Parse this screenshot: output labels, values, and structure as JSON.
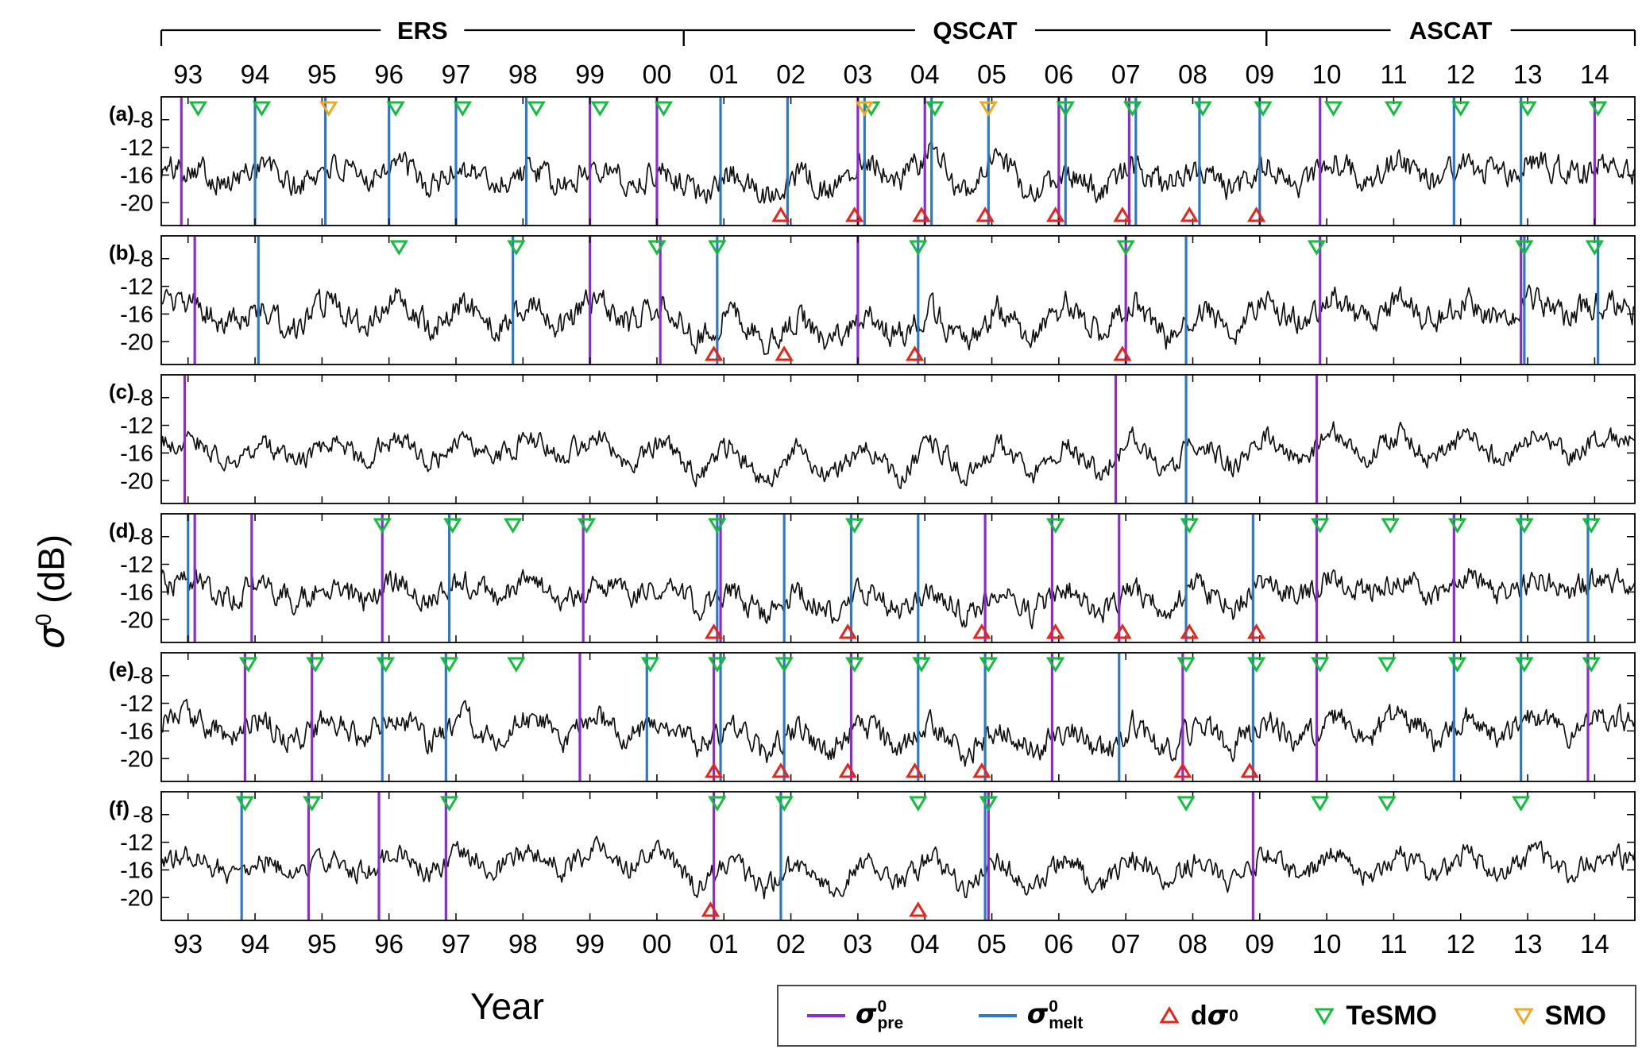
{
  "figure": {
    "x_axis_label": "Year",
    "y_axis_sym": "σ",
    "y_axis_sup": "0",
    "y_axis_unit": " (dB)"
  },
  "colors": {
    "pre": "#8B2BD6",
    "melt": "#2E79C7",
    "dsigma": "#E8231A",
    "tesmo": "#12BE3C",
    "smo": "#F0A81C",
    "trace": "#111111",
    "frame": "#000000"
  },
  "legend": {
    "items": [
      {
        "kind": "line",
        "color_key": "pre",
        "prefix": "",
        "sym": "σ",
        "sup": "0",
        "sub": "pre",
        "label": ""
      },
      {
        "kind": "line",
        "color_key": "melt",
        "prefix": "",
        "sym": "σ",
        "sup": "0",
        "sub": "melt",
        "label": ""
      },
      {
        "kind": "tri-up",
        "color_key": "dsigma",
        "prefix": "d",
        "sym": "σ",
        "sup": "0",
        "sub": "",
        "label": ""
      },
      {
        "kind": "tri-down",
        "color_key": "tesmo",
        "prefix": "",
        "sym": "",
        "sup": "",
        "sub": "",
        "label": "TeSMO"
      },
      {
        "kind": "tri-down",
        "color_key": "smo",
        "prefix": "",
        "sym": "",
        "sup": "",
        "sub": "",
        "label": "SMO"
      }
    ]
  },
  "chart_data": {
    "type": "line",
    "title": "",
    "xlabel": "Year",
    "ylabel": "sigma0 (dB)",
    "x_range": [
      1992.6,
      2014.6
    ],
    "y_range": [
      -23.3,
      -4.7
    ],
    "y_ticks": [
      -8,
      -12,
      -16,
      -20
    ],
    "x_tick_years": [
      1993,
      1994,
      1995,
      1996,
      1997,
      1998,
      1999,
      2000,
      2001,
      2002,
      2003,
      2004,
      2005,
      2006,
      2007,
      2008,
      2009,
      2010,
      2011,
      2012,
      2013,
      2014
    ],
    "x_tick_labels": [
      "93",
      "94",
      "95",
      "96",
      "97",
      "98",
      "99",
      "00",
      "01",
      "02",
      "03",
      "04",
      "05",
      "06",
      "07",
      "08",
      "09",
      "10",
      "11",
      "12",
      "13",
      "14"
    ],
    "eras": [
      {
        "label": "ERS",
        "start": 1992.6,
        "end": 2000.4
      },
      {
        "label": "QSCAT",
        "start": 2000.4,
        "end": 2009.1
      },
      {
        "label": "ASCAT",
        "start": 2009.1,
        "end": 2014.6
      }
    ],
    "series_backbone": {
      "t0": 1992.6,
      "dt": 0.5
    },
    "panels": [
      {
        "label": "(a)",
        "seed": 101,
        "noise": 1.1,
        "values": [
          -15.5,
          -14.5,
          -17.5,
          -14,
          -18,
          -14.5,
          -17,
          -13.5,
          -18,
          -14.5,
          -17.5,
          -15,
          -18,
          -14,
          -17.5,
          -15,
          -18.5,
          -16,
          -19,
          -15.5,
          -18.5,
          -13,
          -17,
          -12.5,
          -18.5,
          -13.5,
          -19,
          -15.5,
          -18.5,
          -14.5,
          -18,
          -15,
          -18.5,
          -14.5,
          -17.5,
          -14,
          -16.5,
          -14,
          -17,
          -14.5,
          -16.5,
          -13.5,
          -16,
          -14.5,
          -15.5
        ],
        "events": {
          "pre": [
            1992.9,
            1999.0,
            2000.0,
            2003.0,
            2004.0,
            2006.0,
            2007.05,
            2009.9,
            2014.0
          ],
          "melt": [
            1994.0,
            1995.05,
            1996.0,
            1997.0,
            1998.05,
            2000.95,
            2001.95,
            2003.1,
            2004.1,
            2004.95,
            2006.1,
            2007.15,
            2008.1,
            2009.0,
            2011.9,
            2012.9
          ],
          "dsigma": [
            2001.85,
            2002.95,
            2003.95,
            2004.9,
            2005.95,
            2006.95,
            2007.95,
            2008.95
          ],
          "tesmo": [
            1993.15,
            1994.1,
            1996.1,
            1997.1,
            1998.2,
            1999.15,
            2000.1,
            2003.2,
            2004.15,
            2006.1,
            2007.1,
            2008.15,
            2009.05,
            2010.1,
            2011.0,
            2012.0,
            2013.0,
            2014.05
          ],
          "smo": [
            1995.1,
            2003.1,
            2004.95
          ]
        }
      },
      {
        "label": "(b)",
        "seed": 102,
        "noise": 1.1,
        "values": [
          -15,
          -14.5,
          -18,
          -15,
          -18.5,
          -14,
          -17.5,
          -13.5,
          -18,
          -14,
          -18.5,
          -14.5,
          -18,
          -13.5,
          -17.5,
          -14.5,
          -19.5,
          -15.5,
          -20.5,
          -16.5,
          -20,
          -16,
          -19.5,
          -15.5,
          -20,
          -15,
          -19.5,
          -14.5,
          -19,
          -14,
          -19.5,
          -15,
          -19,
          -14,
          -17,
          -13.5,
          -17.5,
          -14,
          -17,
          -13.5,
          -17.5,
          -14,
          -16.5,
          -14,
          -15.5
        ],
        "events": {
          "pre": [
            1993.1,
            1999.0,
            2000.05,
            2003.0,
            2007.0,
            2009.9,
            2012.9
          ],
          "melt": [
            1994.05,
            1997.85,
            2000.9,
            2003.9,
            2007.9,
            2012.95,
            2014.05
          ],
          "dsigma": [
            2000.85,
            2001.9,
            2003.85,
            2006.95
          ],
          "tesmo": [
            1996.15,
            1997.9,
            2000.0,
            2000.9,
            2003.9,
            2007.0,
            2009.85,
            2012.95,
            2014.0
          ],
          "smo": []
        }
      },
      {
        "label": "(c)",
        "seed": 103,
        "noise": 0.85,
        "values": [
          -14.5,
          -14,
          -17.5,
          -14.5,
          -18,
          -14,
          -17,
          -13.5,
          -17.5,
          -14,
          -17,
          -13.5,
          -16.5,
          -13.5,
          -17.5,
          -14,
          -19.5,
          -15,
          -20,
          -15.5,
          -19.5,
          -15,
          -19.5,
          -14.5,
          -19,
          -14.5,
          -19.5,
          -14.5,
          -19,
          -14,
          -18.5,
          -14,
          -18.5,
          -13.5,
          -17,
          -13,
          -16.5,
          -13,
          -17.5,
          -13.5,
          -17,
          -13.5,
          -16.5,
          -13.5,
          -14.5
        ],
        "events": {
          "pre": [
            1992.95,
            2006.85,
            2009.85
          ],
          "melt": [
            2007.9
          ],
          "dsigma": [],
          "tesmo": [],
          "smo": []
        }
      },
      {
        "label": "(d)",
        "seed": 104,
        "noise": 1.0,
        "values": [
          -15,
          -14.5,
          -17,
          -14.5,
          -17.5,
          -15,
          -17.5,
          -14,
          -17.5,
          -14.5,
          -17,
          -14,
          -17.5,
          -14,
          -17,
          -14.5,
          -18.5,
          -15.5,
          -19.5,
          -16,
          -19,
          -15.5,
          -19,
          -15,
          -19.5,
          -15.5,
          -19,
          -15,
          -19.5,
          -15.5,
          -19,
          -15,
          -18.5,
          -14.5,
          -17,
          -14,
          -16.5,
          -14,
          -16.5,
          -14,
          -16.5,
          -14,
          -16,
          -14,
          -15
        ],
        "events": {
          "pre": [
            1993.1,
            1993.95,
            1995.9,
            1998.9,
            2000.95,
            2004.9,
            2005.9,
            2006.9,
            2009.85,
            2011.9
          ],
          "melt": [
            1993.0,
            1996.9,
            2000.9,
            2001.9,
            2002.9,
            2003.9,
            2007.9,
            2008.9,
            2012.9,
            2013.9
          ],
          "dsigma": [
            2000.85,
            2002.85,
            2004.85,
            2005.95,
            2006.95,
            2007.95,
            2008.95
          ],
          "tesmo": [
            1995.9,
            1996.95,
            1997.85,
            1998.95,
            2000.9,
            2002.95,
            2005.95,
            2007.95,
            2009.9,
            2010.95,
            2011.95,
            2012.95,
            2013.95
          ],
          "smo": []
        }
      },
      {
        "label": "(e)",
        "seed": 105,
        "noise": 1.05,
        "values": [
          -15,
          -14,
          -17,
          -14,
          -17.5,
          -14,
          -17,
          -13.5,
          -17.5,
          -14,
          -17.5,
          -14,
          -17,
          -13.5,
          -17,
          -14.5,
          -18.5,
          -15,
          -19.5,
          -15.5,
          -19,
          -15,
          -19,
          -15,
          -19.5,
          -15,
          -19,
          -15.5,
          -19.5,
          -15,
          -19,
          -15,
          -18.5,
          -14.5,
          -17.5,
          -14,
          -17,
          -13.5,
          -17,
          -14,
          -17,
          -13.5,
          -16.5,
          -14,
          -15
        ],
        "events": {
          "pre": [
            1993.85,
            1994.85,
            1998.85,
            2000.85,
            2002.9,
            2005.9,
            2007.85,
            2009.85,
            2013.9
          ],
          "melt": [
            1995.9,
            1996.85,
            1999.85,
            2000.95,
            2001.9,
            2003.9,
            2004.9,
            2006.9,
            2008.9,
            2011.9,
            2012.9
          ],
          "dsigma": [
            2000.85,
            2001.85,
            2002.85,
            2003.85,
            2004.85,
            2007.85,
            2008.85
          ],
          "tesmo": [
            1993.9,
            1994.9,
            1995.95,
            1996.9,
            1997.9,
            1999.9,
            2000.9,
            2001.9,
            2002.95,
            2003.95,
            2004.95,
            2005.95,
            2007.9,
            2008.95,
            2009.9,
            2010.9,
            2011.95,
            2012.95,
            2013.95
          ],
          "smo": []
        }
      },
      {
        "label": "(f)",
        "seed": 106,
        "noise": 0.9,
        "values": [
          -14.5,
          -14,
          -16.5,
          -14,
          -17,
          -14.5,
          -16.5,
          -13.5,
          -16.5,
          -13.5,
          -16,
          -13,
          -16,
          -13,
          -15.5,
          -13.5,
          -18.5,
          -14.5,
          -19,
          -15,
          -19,
          -14.5,
          -18.5,
          -14,
          -19,
          -14.5,
          -18.5,
          -14,
          -18.5,
          -14,
          -18,
          -14,
          -18,
          -13.5,
          -17,
          -13.5,
          -17,
          -13.5,
          -17.5,
          -13.5,
          -17,
          -13.5,
          -16.5,
          -13.5,
          -14.5
        ],
        "events": {
          "pre": [
            1994.8,
            1995.85,
            1996.85,
            2000.85,
            2004.95,
            2008.9
          ],
          "melt": [
            1993.8,
            2001.85,
            2004.9
          ],
          "dsigma": [
            2000.8,
            2003.9
          ],
          "tesmo": [
            1993.85,
            1994.85,
            1996.9,
            2000.9,
            2001.9,
            2003.9,
            2004.95,
            2007.9,
            2009.9,
            2010.9,
            2012.9
          ],
          "smo": []
        }
      }
    ]
  }
}
